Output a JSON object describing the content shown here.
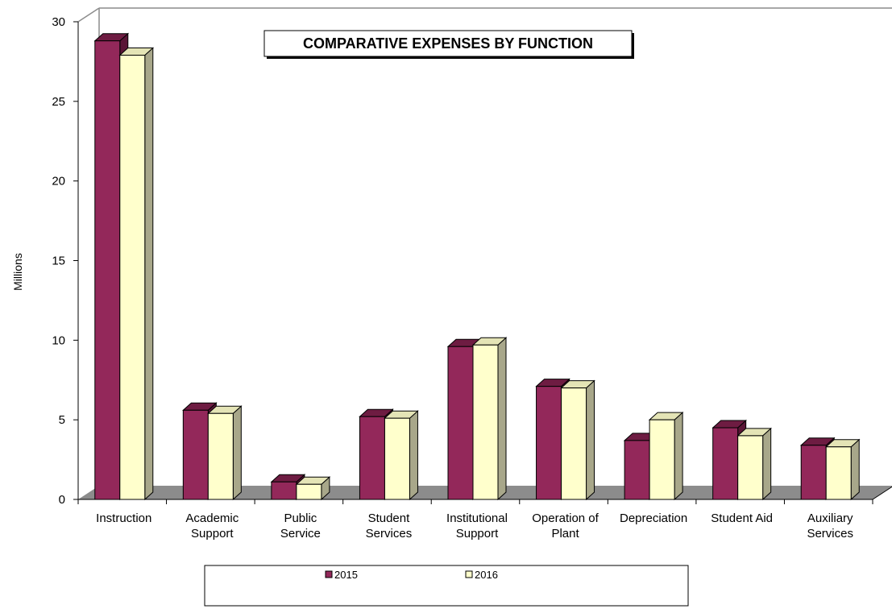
{
  "chart_data": {
    "type": "bar",
    "title": "COMPARATIVE EXPENSES BY FUNCTION",
    "xlabel": "",
    "ylabel": "Millions",
    "ylim": [
      0,
      30
    ],
    "yticks": [
      "0",
      "5",
      "10",
      "15",
      "20",
      "25",
      "30"
    ],
    "grid": false,
    "legend_position": "bottom",
    "categories": [
      [
        "Instruction"
      ],
      [
        "Academic",
        "Support"
      ],
      [
        "Public",
        "Service"
      ],
      [
        "Student",
        "Services"
      ],
      [
        "Institutional",
        "Support"
      ],
      [
        "Operation of",
        "Plant"
      ],
      [
        "Depreciation"
      ],
      [
        "Student Aid"
      ],
      [
        "Auxiliary",
        "Services"
      ]
    ],
    "series": [
      {
        "name": "2015",
        "values": [
          28.8,
          5.6,
          1.1,
          5.2,
          9.6,
          7.1,
          3.7,
          4.5,
          3.4
        ]
      },
      {
        "name": "2016",
        "values": [
          27.9,
          5.4,
          0.95,
          5.1,
          9.7,
          7.0,
          5.0,
          4.0,
          3.3
        ]
      }
    ],
    "colors": {
      "series_2015": "#93285a",
      "series_2015_top": "#6e1c42",
      "series_2015_side": "#5a1536",
      "series_2016": "#ffffcc",
      "series_2016_top": "#e4e4b6",
      "series_2016_side": "#a8a78a",
      "floor": "#8c8c8c",
      "wall_line": "#8c8c8c"
    }
  }
}
